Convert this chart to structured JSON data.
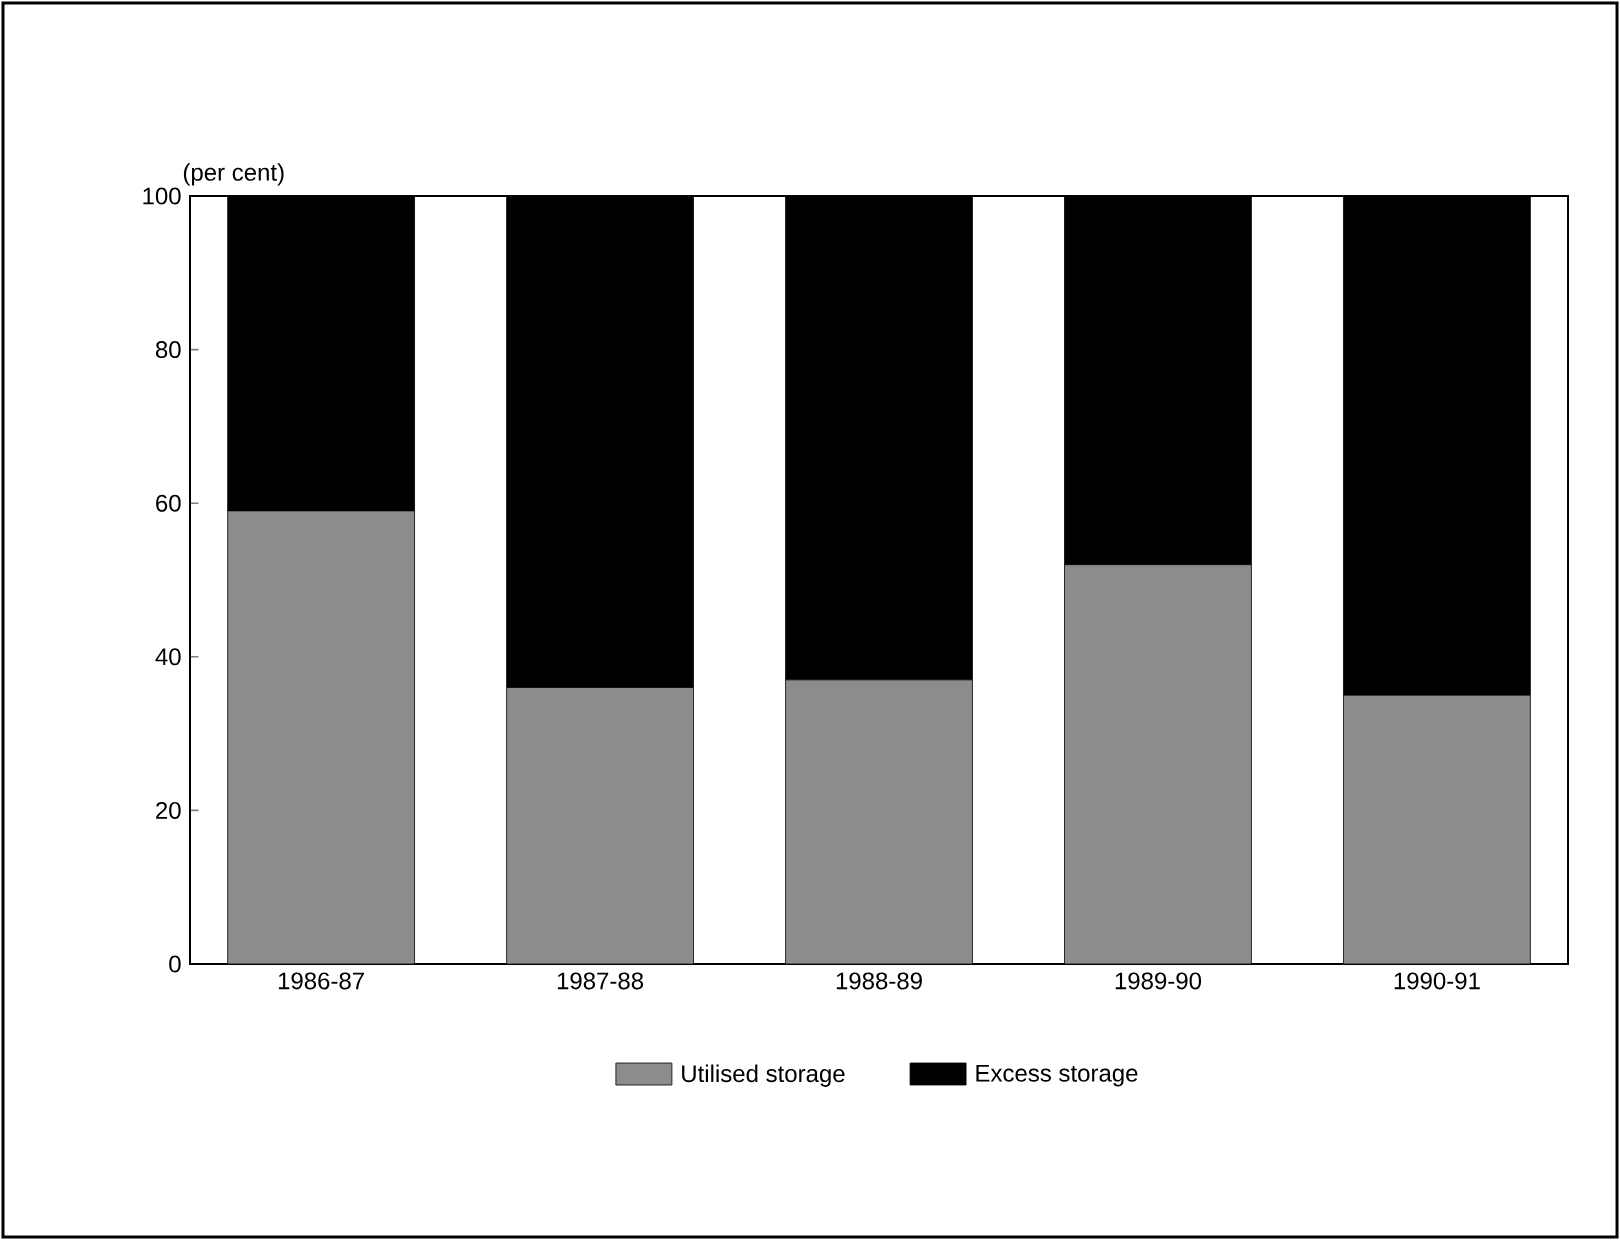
{
  "chart_data": {
    "type": "bar",
    "stacked": true,
    "ylabel": "(per cent)",
    "categories": [
      "1986-87",
      "1987-88",
      "1988-89",
      "1989-90",
      "1990-91"
    ],
    "series": [
      {
        "name": "Utilised storage",
        "color": "#8c8c8c",
        "values": [
          59,
          36,
          37,
          52,
          35
        ]
      },
      {
        "name": "Excess storage",
        "color": "#000000",
        "values": [
          41,
          64,
          63,
          48,
          65
        ]
      }
    ],
    "ylim": [
      0,
      100
    ],
    "yticks": [
      0,
      20,
      40,
      60,
      80,
      100
    ],
    "grid": false,
    "legend": "bottom"
  }
}
